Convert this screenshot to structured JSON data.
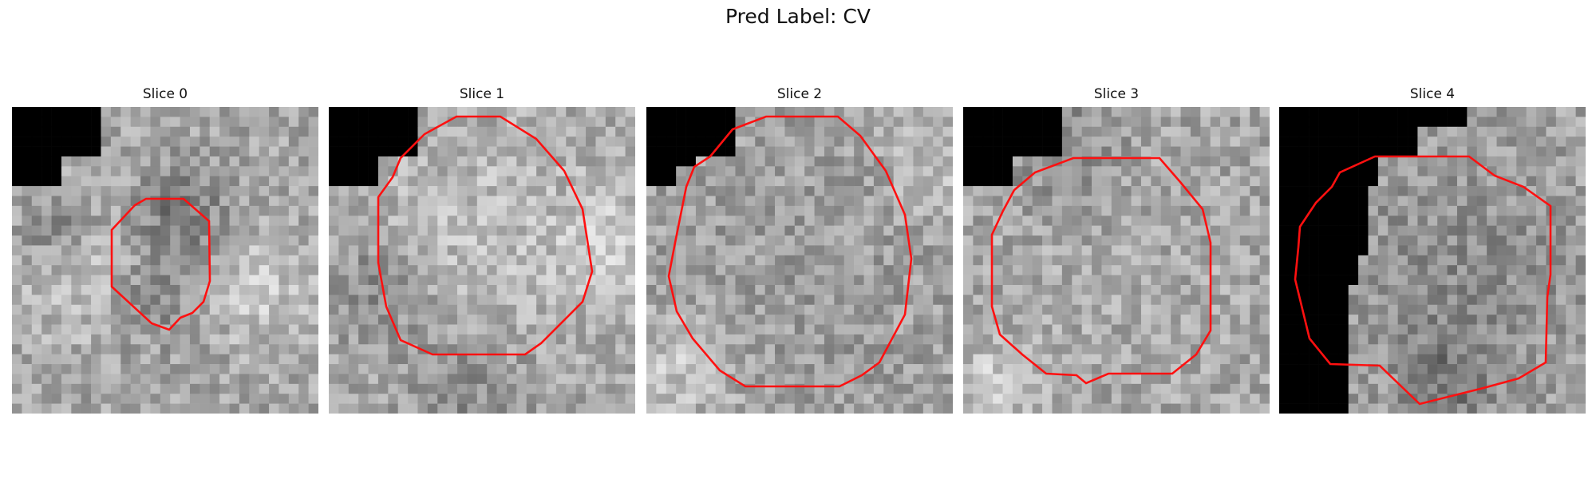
{
  "figure": {
    "title": "Pred Label: CV"
  },
  "panels": [
    {
      "title": "Slice 0",
      "contour_color": "#ff0000"
    },
    {
      "title": "Slice 1",
      "contour_color": "#ff0000"
    },
    {
      "title": "Slice 2",
      "contour_color": "#ff0000"
    },
    {
      "title": "Slice 3",
      "contour_color": "#ff0000"
    },
    {
      "title": "Slice 4",
      "contour_color": "#ff0000"
    }
  ]
}
